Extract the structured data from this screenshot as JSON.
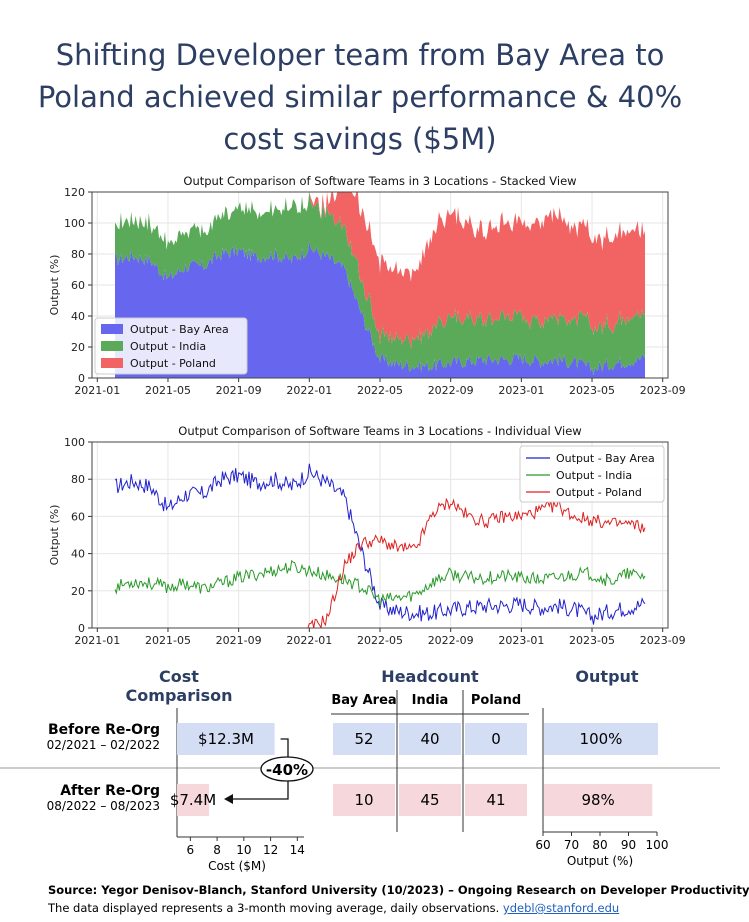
{
  "title_lines": [
    "Shifting Developer team from Bay Area to",
    "Poland achieved similar performance & 40%",
    "cost savings ($5M)"
  ],
  "chart_data": [
    {
      "type": "area",
      "title": "Output Comparison of Software Teams in 3 Locations - Stacked View",
      "xlabel": "",
      "ylabel": "Output (%)",
      "ylim": [
        0,
        120
      ],
      "yticks": [
        "0",
        "20",
        "40",
        "60",
        "80",
        "100",
        "120"
      ],
      "xticks": [
        "2021-01",
        "2021-05",
        "2021-09",
        "2022-01",
        "2022-05",
        "2022-09",
        "2023-01",
        "2023-05",
        "2023-09"
      ],
      "grid": true,
      "legend": "lower-left",
      "colors": [
        "#6666ee",
        "#5aaa5a",
        "#f26464"
      ],
      "x": [
        "2021-02",
        "2021-03",
        "2021-04",
        "2021-05",
        "2021-06",
        "2021-07",
        "2021-08",
        "2021-09",
        "2021-10",
        "2021-11",
        "2021-12",
        "2022-01",
        "2022-02",
        "2022-03",
        "2022-04",
        "2022-05",
        "2022-06",
        "2022-07",
        "2022-08",
        "2022-09",
        "2022-10",
        "2022-11",
        "2022-12",
        "2023-01",
        "2023-02",
        "2023-03",
        "2023-04",
        "2023-05",
        "2023-06",
        "2023-07",
        "2023-08"
      ],
      "series": [
        {
          "name": "Output - Bay Area",
          "values": [
            76,
            79,
            76,
            64,
            72,
            72,
            80,
            82,
            78,
            80,
            76,
            84,
            78,
            70,
            40,
            12,
            9,
            8,
            8,
            10,
            11,
            12,
            12,
            13,
            11,
            12,
            10,
            6,
            9,
            11,
            13
          ]
        },
        {
          "name": "Output - India",
          "values": [
            22,
            25,
            24,
            22,
            24,
            21,
            24,
            27,
            29,
            31,
            33,
            31,
            28,
            26,
            22,
            15,
            16,
            18,
            25,
            29,
            27,
            27,
            28,
            27,
            26,
            27,
            29,
            29,
            25,
            29,
            28
          ]
        },
        {
          "name": "Output - Poland",
          "values": [
            0,
            0,
            0,
            0,
            0,
            0,
            0,
            0,
            0,
            0,
            0,
            0,
            5,
            34,
            46,
            47,
            43,
            42,
            62,
            68,
            60,
            57,
            60,
            60,
            63,
            66,
            60,
            58,
            56,
            56,
            54
          ]
        }
      ]
    },
    {
      "type": "line",
      "title": "Output Comparison of Software Teams in 3 Locations - Individual View",
      "xlabel": "",
      "ylabel": "Output (%)",
      "ylim": [
        0,
        100
      ],
      "yticks": [
        "0",
        "20",
        "40",
        "60",
        "80",
        "100"
      ],
      "xticks": [
        "2021-01",
        "2021-05",
        "2021-09",
        "2022-01",
        "2022-05",
        "2022-09",
        "2023-01",
        "2023-05",
        "2023-09"
      ],
      "grid": true,
      "legend": "top-right",
      "colors": [
        "#2222cc",
        "#2a9a2a",
        "#dd2222"
      ],
      "x": [
        "2021-02",
        "2021-03",
        "2021-04",
        "2021-05",
        "2021-06",
        "2021-07",
        "2021-08",
        "2021-09",
        "2021-10",
        "2021-11",
        "2021-12",
        "2022-01",
        "2022-02",
        "2022-03",
        "2022-04",
        "2022-05",
        "2022-06",
        "2022-07",
        "2022-08",
        "2022-09",
        "2022-10",
        "2022-11",
        "2022-12",
        "2023-01",
        "2023-02",
        "2023-03",
        "2023-04",
        "2023-05",
        "2023-06",
        "2023-07",
        "2023-08"
      ],
      "series": [
        {
          "name": "Output - Bay Area",
          "values": [
            76,
            79,
            76,
            64,
            72,
            72,
            80,
            82,
            78,
            80,
            76,
            84,
            78,
            70,
            40,
            12,
            9,
            8,
            8,
            10,
            11,
            12,
            12,
            13,
            11,
            12,
            10,
            6,
            9,
            11,
            13
          ]
        },
        {
          "name": "Output - India",
          "values": [
            22,
            25,
            24,
            22,
            24,
            21,
            24,
            27,
            29,
            31,
            33,
            31,
            28,
            26,
            22,
            15,
            16,
            18,
            25,
            29,
            27,
            27,
            28,
            27,
            26,
            27,
            29,
            29,
            25,
            29,
            28
          ]
        },
        {
          "name": "Output - Poland",
          "values": [
            0,
            0,
            0,
            0,
            0,
            0,
            0,
            0,
            0,
            0,
            0,
            0,
            5,
            34,
            46,
            47,
            43,
            42,
            62,
            68,
            60,
            57,
            60,
            60,
            63,
            66,
            60,
            58,
            56,
            56,
            54
          ]
        }
      ]
    },
    {
      "type": "bar",
      "title": "Cost Comparison",
      "xlabel": "Cost ($M)",
      "xticks": [
        "6",
        "8",
        "10",
        "12",
        "14"
      ],
      "xlim": [
        5,
        14.5
      ],
      "categories": [
        "Before Re-Org",
        "After Re-Org"
      ],
      "values": [
        12.3,
        7.4
      ],
      "labels": [
        "$12.3M",
        "$7.4M"
      ],
      "annotation": "-40%"
    },
    {
      "type": "table",
      "title": "Headcount",
      "columns": [
        "Bay Area",
        "India",
        "Poland"
      ],
      "rows": [
        [
          "52",
          "40",
          "0"
        ],
        [
          "10",
          "45",
          "41"
        ]
      ]
    },
    {
      "type": "bar",
      "title": "Output",
      "xlabel": "Output (%)",
      "xticks": [
        "60",
        "70",
        "80",
        "90",
        "100"
      ],
      "xlim": [
        60,
        100
      ],
      "categories": [
        "Before Re-Org",
        "After Re-Org"
      ],
      "values": [
        100,
        98
      ],
      "labels": [
        "100%",
        "98%"
      ]
    }
  ],
  "rows": {
    "before": {
      "label": "Before Re-Org",
      "period": "02/2021 – 02/2022"
    },
    "after": {
      "label": "After Re-Org",
      "period": "08/2022 – 08/2023"
    }
  },
  "footer": {
    "source": "Source: Yegor Denisov-Blanch, Stanford University (10/2023) – Ongoing Research on Developer Productivity",
    "note": "The data displayed represents a 3-month moving  average, daily observations.",
    "email": "ydebl@stanford.edu"
  }
}
